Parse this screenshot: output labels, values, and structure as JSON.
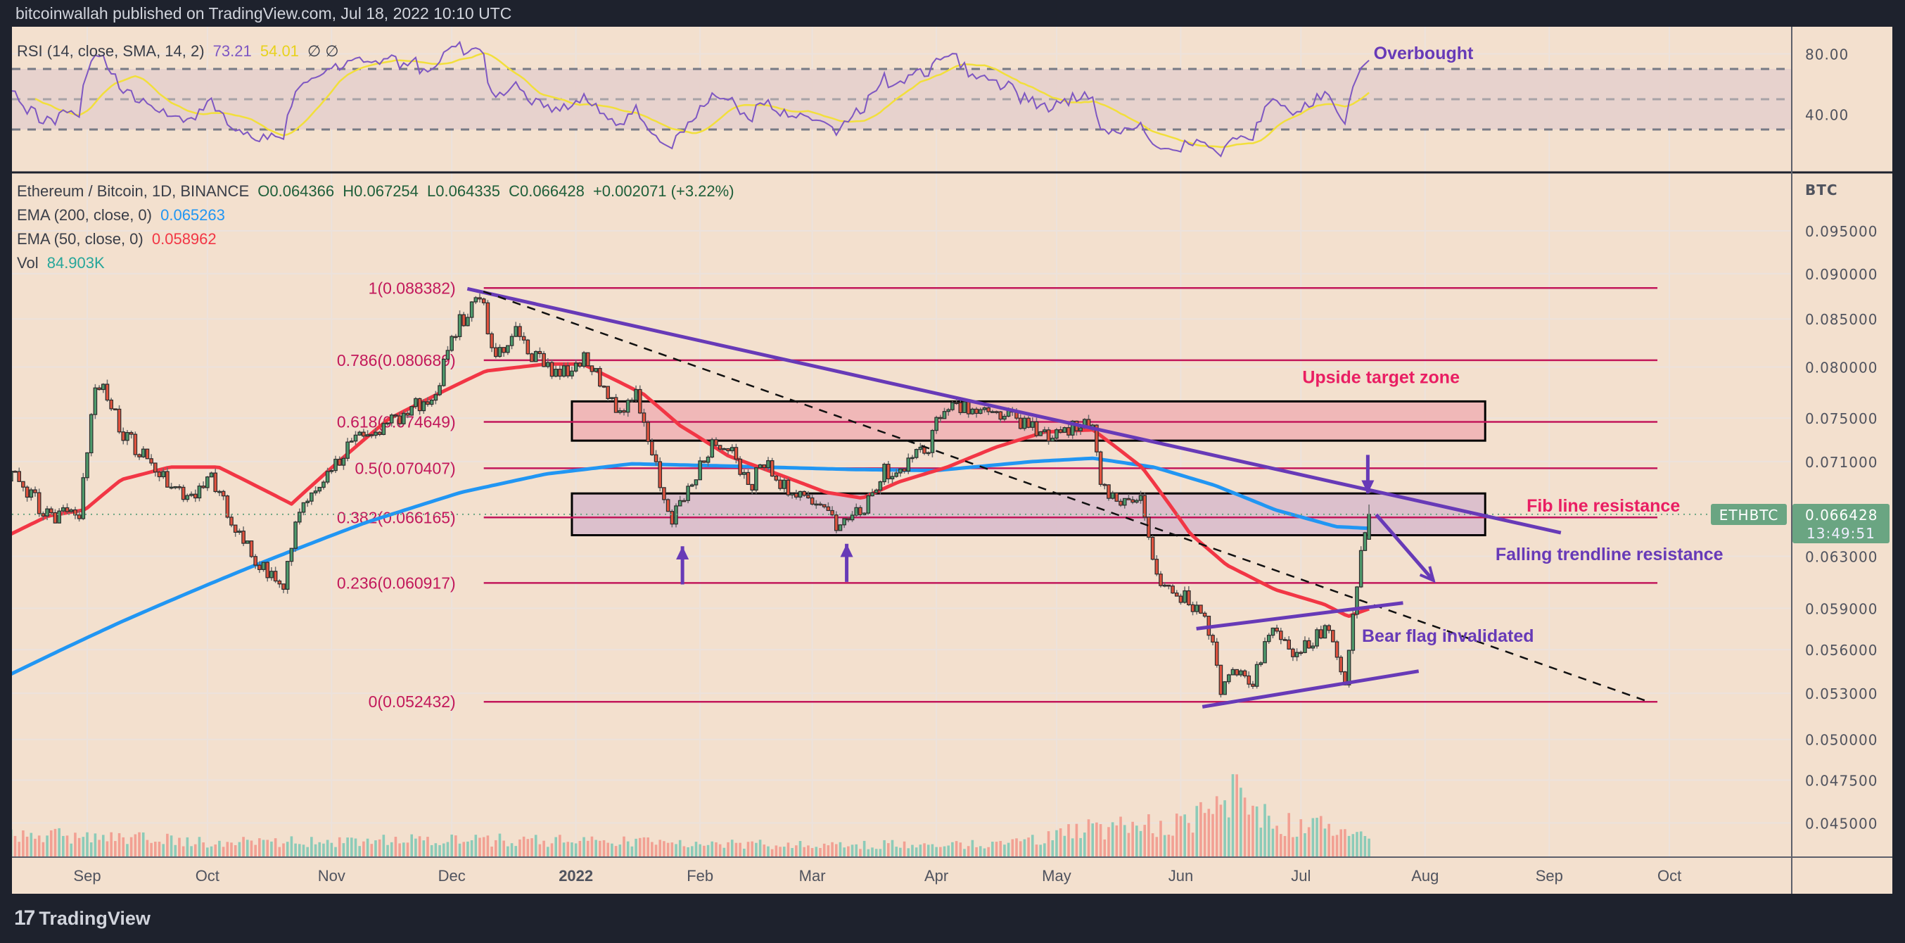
{
  "header": {
    "published": "bitcoinwallah published on TradingView.com, Jul 18, 2022 10:10 UTC"
  },
  "rsi_legend": {
    "title": "RSI (14, close, SMA, 14, 2)",
    "rsi_value": "73.21",
    "sma_value": "54.01",
    "extra": "∅ ∅"
  },
  "main_legend": {
    "symbol": "Ethereum / Bitcoin, 1D, BINANCE",
    "open": "O0.064366",
    "high": "H0.067254",
    "low": "L0.064335",
    "close": "C0.066428",
    "change": "+0.002071 (+3.22%)",
    "ema200_label": "EMA (200, close, 0)",
    "ema200_value": "0.065263",
    "ema50_label": "EMA (50, close, 0)",
    "ema50_value": "0.058962",
    "vol_label": "Vol",
    "vol_value": "84.903K"
  },
  "footer": {
    "brand": "TradingView",
    "brand_icon": "tradingview-logo-icon"
  },
  "colors": {
    "background": "#f3e0ce",
    "grid": "#ece2dc",
    "up": "#4e9a6c",
    "down": "#e0533f",
    "ema200": "#2196f3",
    "ema50": "#f23645",
    "rsi": "#7e57c2",
    "rsi_sma": "#f2df3b",
    "fib": "#c2185b",
    "trend": "#673ab7",
    "pink_text": "#e91e63",
    "price_tag": "#6aa582"
  },
  "chart_data": {
    "type": "candlestick",
    "x_origin_date": "2021-09-01",
    "x_unit": "days since x_origin_date",
    "x_range_days": [
      -19,
      450
    ],
    "y_scale": "log",
    "y_unit": "BTC",
    "price_ticks": [
      "0.095000",
      "0.090000",
      "0.085000",
      "0.080000",
      "0.075000",
      "0.071000",
      "0.063000",
      "0.059000",
      "0.056000",
      "0.053000",
      "0.050000",
      "0.047500",
      "0.045000"
    ],
    "axis_unit_label": "BTC",
    "time_ticks": [
      {
        "label": "Sep",
        "day": 0
      },
      {
        "label": "Oct",
        "day": 30
      },
      {
        "label": "Nov",
        "day": 61
      },
      {
        "label": "Dec",
        "day": 91
      },
      {
        "label": "2022",
        "day": 122,
        "bold": true
      },
      {
        "label": "Feb",
        "day": 153
      },
      {
        "label": "Mar",
        "day": 181
      },
      {
        "label": "Apr",
        "day": 212
      },
      {
        "label": "May",
        "day": 242
      },
      {
        "label": "Jun",
        "day": 273
      },
      {
        "label": "Jul",
        "day": 303
      },
      {
        "label": "Aug",
        "day": 334
      },
      {
        "label": "Sep",
        "day": 365
      },
      {
        "label": "Oct",
        "day": 395
      }
    ],
    "last_candle": {
      "day": 320,
      "open": 0.064366,
      "high": 0.067254,
      "low": 0.064335,
      "close": 0.066428
    },
    "current_price": {
      "symbol": "ETHBTC",
      "price": "0.066428",
      "countdown": "13:49:51",
      "value": 0.066428
    },
    "close_path": [
      [
        -40,
        0.069
      ],
      [
        -18,
        0.0699
      ],
      [
        -10,
        0.0663
      ],
      [
        -2,
        0.0663
      ],
      [
        2,
        0.078
      ],
      [
        4,
        0.0787
      ],
      [
        8,
        0.074
      ],
      [
        15,
        0.071
      ],
      [
        24,
        0.0678
      ],
      [
        31,
        0.0695
      ],
      [
        36,
        0.0658
      ],
      [
        42,
        0.0625
      ],
      [
        49,
        0.0604
      ],
      [
        52,
        0.0658
      ],
      [
        59,
        0.0699
      ],
      [
        65,
        0.0721
      ],
      [
        69,
        0.0734
      ],
      [
        78,
        0.075
      ],
      [
        87,
        0.0775
      ],
      [
        92,
        0.084
      ],
      [
        98,
        0.0875
      ],
      [
        102,
        0.081
      ],
      [
        107,
        0.084
      ],
      [
        112,
        0.0808
      ],
      [
        118,
        0.0795
      ],
      [
        125,
        0.081
      ],
      [
        128,
        0.078
      ],
      [
        133,
        0.075
      ],
      [
        137,
        0.0773
      ],
      [
        142,
        0.0706
      ],
      [
        146,
        0.0658
      ],
      [
        151,
        0.069
      ],
      [
        156,
        0.0725
      ],
      [
        162,
        0.0715
      ],
      [
        165,
        0.0684
      ],
      [
        169,
        0.071
      ],
      [
        175,
        0.0684
      ],
      [
        181,
        0.0673
      ],
      [
        187,
        0.0658
      ],
      [
        194,
        0.0668
      ],
      [
        198,
        0.0699
      ],
      [
        204,
        0.0706
      ],
      [
        210,
        0.0721
      ],
      [
        213,
        0.0756
      ],
      [
        221,
        0.0763
      ],
      [
        230,
        0.075
      ],
      [
        239,
        0.0734
      ],
      [
        245,
        0.074
      ],
      [
        251,
        0.075
      ],
      [
        253,
        0.0684
      ],
      [
        259,
        0.0678
      ],
      [
        263,
        0.0673
      ],
      [
        266,
        0.0625
      ],
      [
        269,
        0.0608
      ],
      [
        274,
        0.0598
      ],
      [
        278,
        0.0589
      ],
      [
        281,
        0.0567
      ],
      [
        283,
        0.0533
      ],
      [
        286,
        0.0541
      ],
      [
        291,
        0.0537
      ],
      [
        295,
        0.0576
      ],
      [
        298,
        0.0572
      ],
      [
        301,
        0.055
      ],
      [
        306,
        0.0567
      ],
      [
        309,
        0.0576
      ],
      [
        312,
        0.056
      ],
      [
        314,
        0.0537
      ],
      [
        315,
        0.0555
      ],
      [
        316,
        0.0584
      ],
      [
        318,
        0.0641
      ],
      [
        319,
        0.065
      ],
      [
        320,
        0.066428
      ]
    ],
    "ema200": [
      [
        -19,
        0.0543
      ],
      [
        8.5,
        0.058
      ],
      [
        38.8,
        0.0619
      ],
      [
        69.2,
        0.0657
      ],
      [
        93.4,
        0.0683
      ],
      [
        114.6,
        0.0699
      ],
      [
        135.9,
        0.0708
      ],
      [
        160.1,
        0.0706
      ],
      [
        190.5,
        0.0703
      ],
      [
        211.7,
        0.0702
      ],
      [
        236,
        0.071
      ],
      [
        251.1,
        0.0713
      ],
      [
        266.3,
        0.0705
      ],
      [
        281.5,
        0.0689
      ],
      [
        296.6,
        0.0668
      ],
      [
        311.8,
        0.0654
      ],
      [
        320,
        0.065263
      ]
    ],
    "ema50": [
      [
        -19,
        0.0648
      ],
      [
        -9.7,
        0.0663
      ],
      [
        -0.6,
        0.0668
      ],
      [
        8.5,
        0.0694
      ],
      [
        20.6,
        0.0705
      ],
      [
        32.8,
        0.0705
      ],
      [
        41.9,
        0.0689
      ],
      [
        51,
        0.0673
      ],
      [
        63.1,
        0.0711
      ],
      [
        75.2,
        0.0749
      ],
      [
        87.4,
        0.0773
      ],
      [
        99.5,
        0.0796
      ],
      [
        114.6,
        0.0803
      ],
      [
        123.7,
        0.0803
      ],
      [
        138.9,
        0.0773
      ],
      [
        148,
        0.0743
      ],
      [
        160.1,
        0.0715
      ],
      [
        172.3,
        0.0699
      ],
      [
        184.4,
        0.0683
      ],
      [
        193.5,
        0.0678
      ],
      [
        202.6,
        0.0692
      ],
      [
        214.7,
        0.0705
      ],
      [
        226.9,
        0.0723
      ],
      [
        239,
        0.0737
      ],
      [
        251.1,
        0.0739
      ],
      [
        263.3,
        0.0705
      ],
      [
        275.4,
        0.0648
      ],
      [
        284.5,
        0.0623
      ],
      [
        296.6,
        0.0604
      ],
      [
        308.8,
        0.0593
      ],
      [
        314.8,
        0.0584
      ],
      [
        320,
        0.058962
      ]
    ],
    "volume_level_k": [
      [
        -19,
        95
      ],
      [
        0,
        105
      ],
      [
        10,
        90
      ],
      [
        30,
        72
      ],
      [
        60,
        75
      ],
      [
        90,
        78
      ],
      [
        110,
        80
      ],
      [
        150,
        62
      ],
      [
        180,
        55
      ],
      [
        230,
        62
      ],
      [
        245,
        120
      ],
      [
        255,
        140
      ],
      [
        270,
        150
      ],
      [
        280,
        200
      ],
      [
        286,
        320
      ],
      [
        290,
        230
      ],
      [
        300,
        150
      ],
      [
        310,
        140
      ],
      [
        320,
        85
      ]
    ],
    "rsi": {
      "period": 14,
      "sma_period": 14,
      "levels": [
        70,
        50,
        30
      ],
      "ticks": [
        "80.00",
        "40.00"
      ],
      "tick_values": [
        80,
        40
      ],
      "last_rsi": 73.21,
      "last_sma": 54.01
    },
    "fib_levels": [
      {
        "label": "1(0.088382)",
        "price": 0.088382
      },
      {
        "label": "0.786(0.080689)",
        "price": 0.080689
      },
      {
        "label": "0.618(0.074649)",
        "price": 0.074649
      },
      {
        "label": "0.5(0.070407)",
        "price": 0.070407
      },
      {
        "label": "0.382(0.066165)",
        "price": 0.066165
      },
      {
        "label": "0.236(0.060917)",
        "price": 0.060917
      },
      {
        "label": "0(0.052432)",
        "price": 0.052432
      }
    ],
    "fib_span_days": [
      99,
      392
    ],
    "zones": [
      {
        "name": "upside-target-zone",
        "day_from": 121,
        "day_to": 349,
        "price_top": 0.0766,
        "price_bottom": 0.0729,
        "fill": "#f0b8b8"
      },
      {
        "name": "support-resistance-zone",
        "day_from": 121,
        "day_to": 349,
        "price_top": 0.0682,
        "price_bottom": 0.0647,
        "fill": "#dcc0cc"
      }
    ],
    "lines": [
      {
        "name": "falling-trendline",
        "from": [
          94.9,
          0.0883
        ],
        "to": [
          367.9,
          0.0649
        ],
        "style": "solid"
      },
      {
        "name": "dashed-trendline",
        "from": [
          98.9,
          0.088
        ],
        "to": [
          389.1,
          0.0525
        ],
        "style": "dashed"
      },
      {
        "name": "bear-flag-upper",
        "from": [
          276.9,
          0.0575
        ],
        "to": [
          328.5,
          0.0594
        ],
        "style": "solid"
      },
      {
        "name": "bear-flag-lower",
        "from": [
          278.4,
          0.0521
        ],
        "to": [
          332.4,
          0.0545
        ],
        "style": "solid"
      }
    ],
    "arrows": [
      {
        "name": "projection-arrow",
        "from": [
          321.8,
          0.0664
        ],
        "to": [
          336.1,
          0.0611
        ]
      },
      {
        "name": "down-arrow",
        "from": [
          319.7,
          0.0716
        ],
        "to": [
          319.7,
          0.0682
        ]
      },
      {
        "name": "up-arrow-1",
        "from": [
          148.6,
          0.0608
        ],
        "to": [
          148.6,
          0.0638
        ]
      },
      {
        "name": "up-arrow-2",
        "from": [
          189.6,
          0.061
        ],
        "to": [
          189.6,
          0.064
        ]
      }
    ],
    "annotations": [
      {
        "text": "Upside target zone",
        "day": 323,
        "price": 0.079,
        "color": "pink"
      },
      {
        "text": "Fib line resistance",
        "day": 378.5,
        "price": 0.0672,
        "color": "pink"
      },
      {
        "text": "Falling trendline resistance",
        "day": 380,
        "price": 0.0632,
        "color": "purple"
      },
      {
        "text": "Bear flag invalidated",
        "day": 339.7,
        "price": 0.057,
        "color": "purple"
      }
    ],
    "rsi_annotation": {
      "text": "Overbought",
      "day": 333.6,
      "rsi": 80.2
    }
  }
}
